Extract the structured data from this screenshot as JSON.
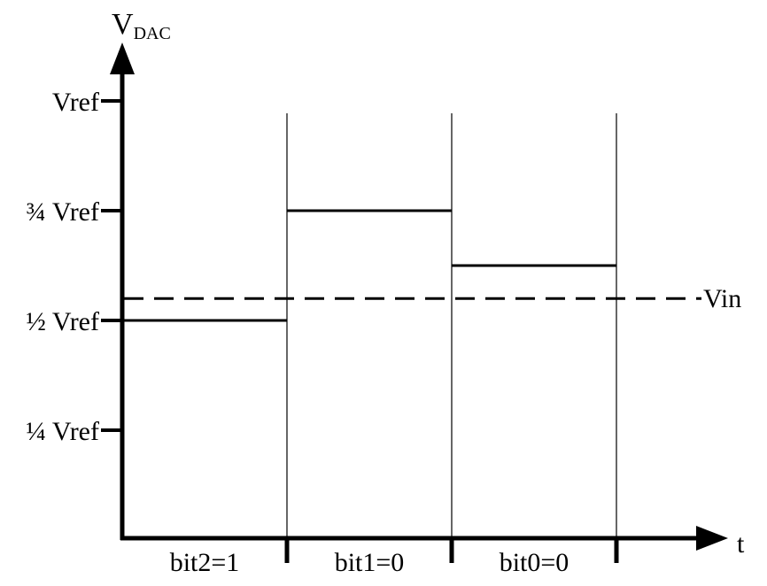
{
  "chart_data": {
    "type": "line",
    "y_axis": {
      "label_main": "V",
      "label_sub": "DAC"
    },
    "x_axis": {
      "label": "t"
    },
    "y_ticks": [
      {
        "label": "Vref",
        "value": 1.0
      },
      {
        "label": "¾ Vref",
        "value": 0.75
      },
      {
        "label": "½ Vref",
        "value": 0.5
      },
      {
        "label": "¼ Vref",
        "value": 0.25
      }
    ],
    "vin": {
      "label": "Vin",
      "value": 0.55
    },
    "steps": [
      {
        "label": "bit2=1",
        "vdac": 0.5
      },
      {
        "label": "bit1=0",
        "vdac": 0.75
      },
      {
        "label": "bit0=0",
        "vdac": 0.625
      }
    ]
  }
}
